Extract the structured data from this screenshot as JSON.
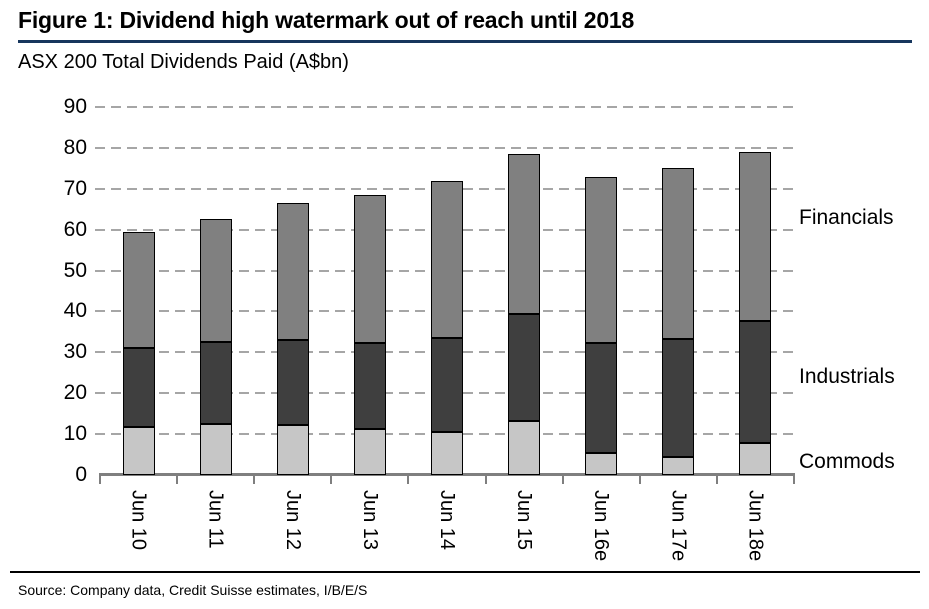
{
  "figure": {
    "title": "Figure 1: Dividend high watermark out of reach until 2018",
    "subtitle": "ASX 200 Total Dividends Paid (A$bn)",
    "source": "Source: Company data, Credit Suisse estimates, I/B/E/S"
  },
  "colors": {
    "title_underline": "#17365d",
    "text": "#000000",
    "gridline": "#a6a6a6",
    "axis": "#7f7f7f",
    "bar_border": "#000000",
    "commods": "#c6c6c6",
    "industrials": "#3f3f3f",
    "financials": "#808080"
  },
  "chart_data": {
    "type": "bar",
    "stacked": true,
    "title": "ASX 200 Total Dividends Paid (A$bn)",
    "categories": [
      "Jun 10",
      "Jun 11",
      "Jun 12",
      "Jun 13",
      "Jun 14",
      "Jun 15",
      "Jun 16e",
      "Jun 17e",
      "Jun 18e"
    ],
    "series": [
      {
        "name": "Commods",
        "color_key": "commods",
        "values": [
          11.7,
          12.4,
          12.3,
          11.2,
          10.4,
          13.3,
          5.4,
          4.5,
          7.9
        ]
      },
      {
        "name": "Industrials",
        "color_key": "industrials",
        "values": [
          19.4,
          20.1,
          20.7,
          21.2,
          23.1,
          26.0,
          26.9,
          28.8,
          29.8
        ]
      },
      {
        "name": "Financials",
        "color_key": "financials",
        "values": [
          28.4,
          30.1,
          33.5,
          36.1,
          38.5,
          39.2,
          40.7,
          41.7,
          41.3
        ]
      }
    ],
    "stack_totals": [
      59.5,
      62.6,
      66.5,
      68.5,
      72.0,
      78.5,
      73.0,
      75.0,
      79.0
    ],
    "ylim": [
      0,
      90
    ],
    "yticks": [
      0,
      10,
      20,
      30,
      40,
      50,
      60,
      70,
      80,
      90
    ],
    "grid": "horizontal-dashed",
    "legend_position": "right-of-plot",
    "right_labels_top_to_bottom": [
      "Financials",
      "Industrials",
      "Commods"
    ]
  }
}
